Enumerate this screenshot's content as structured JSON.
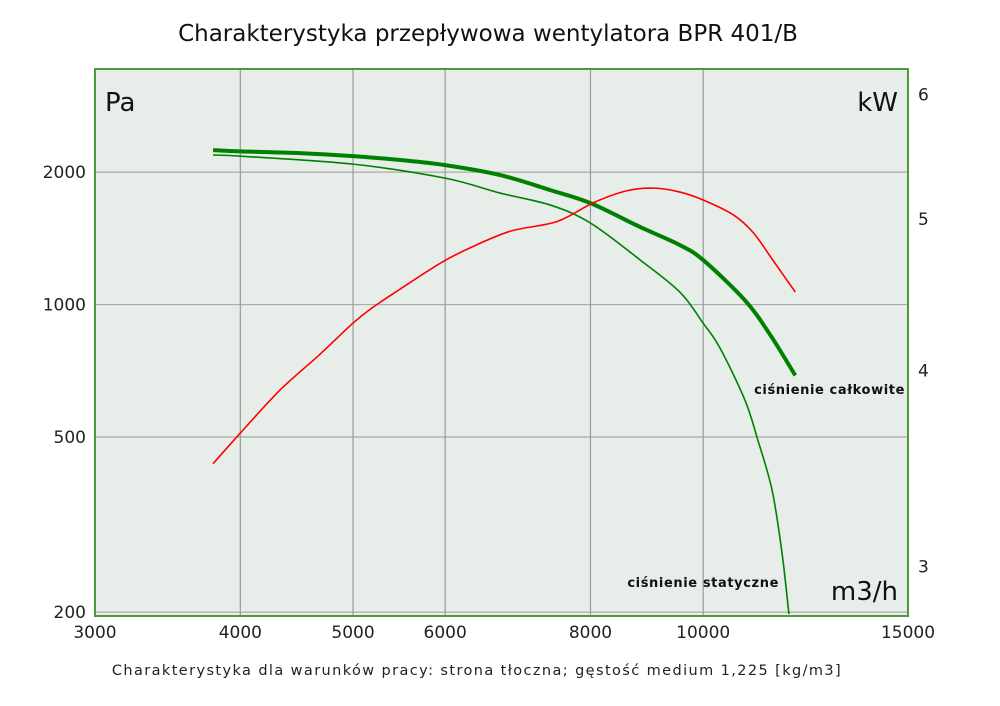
{
  "chart_data": {
    "type": "line",
    "title": "Charakterystyka przepływowa wentylatora BPR 401/B",
    "caption": "Charakterystyka dla warunków pracy: strona tłoczna; gęstość medium 1,225 [kg/m3]",
    "xlabel": "m3/h",
    "ylabel": "Pa",
    "y2label": "kW",
    "x_scale": "log",
    "y_scale": "log",
    "y2_scale": "log",
    "xlim": [
      3000,
      15000
    ],
    "ylim": [
      196,
      3430
    ],
    "y2lim": [
      2.79,
      6.23
    ],
    "grid": true,
    "x_ticks": [
      "3000",
      "4000",
      "5000",
      "6000",
      "8000",
      "10000",
      "15000"
    ],
    "y_ticks": [
      "200",
      "500",
      "1000",
      "2000"
    ],
    "y2_ticks": [
      "3",
      "4",
      "5",
      "6"
    ],
    "colors": {
      "plot_bg": "#e7ede8",
      "frame": "#4b9a3c",
      "grid": "#9a9a9a",
      "pressure": "#008000",
      "power": "#ff0000"
    },
    "series": [
      {
        "name": "ciśnienie całkowite",
        "axis": "left",
        "style": "thick",
        "x": [
          3790,
          4000,
          4500,
          5000,
          5490,
          6000,
          6690,
          7390,
          8000,
          8830,
          9550,
          10000,
          10860,
          11420,
          12000
        ],
        "y": [
          2244,
          2229,
          2209,
          2174,
          2130,
          2074,
          1969,
          1820,
          1700,
          1500,
          1365,
          1262,
          1023,
          853,
          690
        ]
      },
      {
        "name": "ciśnienie statyczne",
        "axis": "left",
        "style": "thin",
        "x": [
          3790,
          4000,
          5000,
          6000,
          6690,
          7390,
          8000,
          8830,
          9550,
          10000,
          10340,
          10860,
          11130,
          11460,
          11690,
          11850
        ],
        "y": [
          2186,
          2174,
          2085,
          1938,
          1792,
          1683,
          1532,
          1262,
          1067,
          907,
          796,
          607,
          497,
          379,
          272,
          198
        ]
      },
      {
        "axis": "right",
        "style": "thin",
        "x": [
          3790,
          4000,
          4330,
          4670,
          5000,
          5200,
          5490,
          5960,
          6300,
          6830,
          7490,
          8050,
          8600,
          9090,
          9550,
          10000,
          10610,
          11040,
          11490,
          12000
        ],
        "y": [
          3.49,
          3.65,
          3.89,
          4.09,
          4.29,
          4.39,
          4.51,
          4.69,
          4.79,
          4.91,
          4.98,
          5.12,
          5.21,
          5.23,
          5.2,
          5.14,
          5.03,
          4.9,
          4.7,
          4.49
        ]
      }
    ]
  }
}
